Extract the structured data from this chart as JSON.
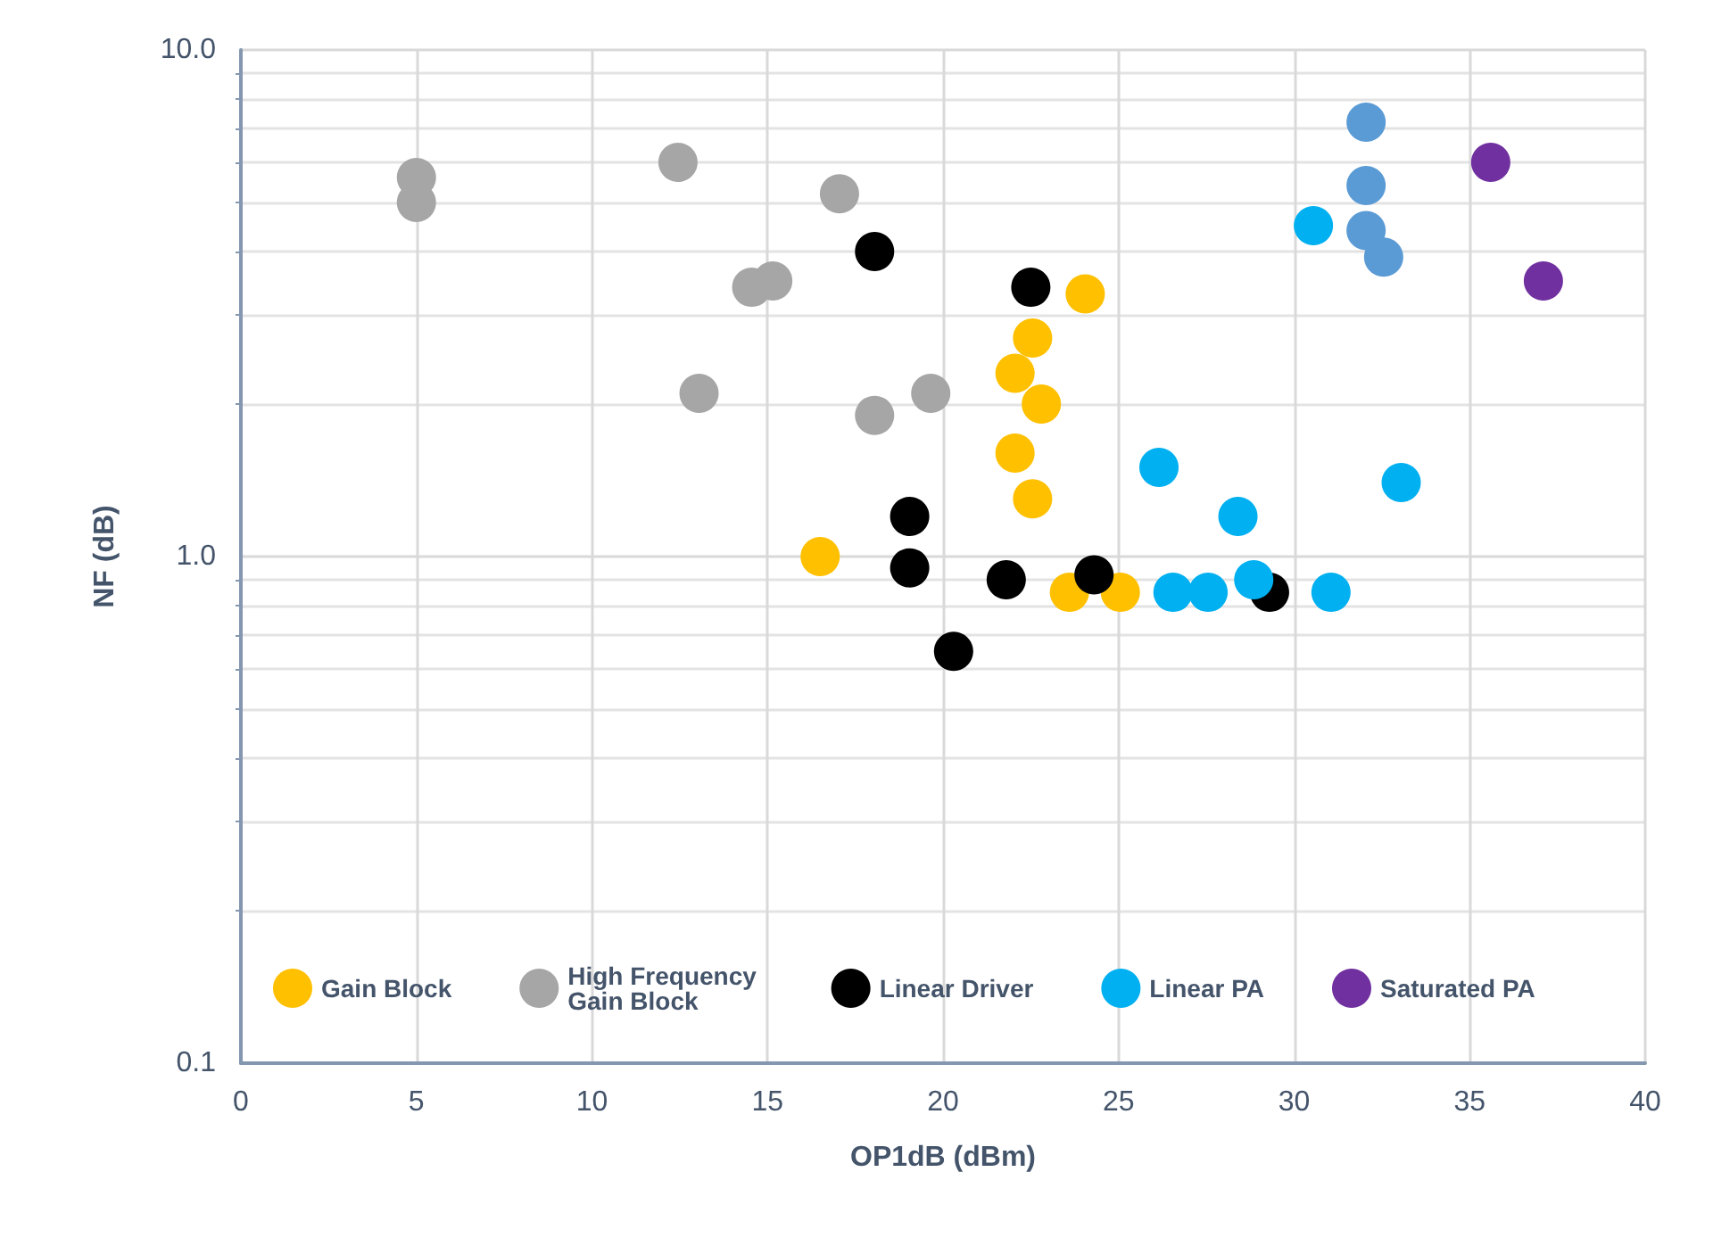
{
  "chart_data": {
    "type": "scatter",
    "xlabel": "OP1dB (dBm)",
    "ylabel": "NF (dB)",
    "log": "y",
    "grid": true,
    "legend": "bottom",
    "marker": "circle",
    "xlim": [
      0,
      40
    ],
    "xticks": [
      0,
      5,
      10,
      15,
      20,
      25,
      30,
      35,
      40
    ],
    "ylim": [
      0.1,
      10
    ],
    "yticks": [
      {
        "value": 0.1,
        "label": "0.1"
      },
      {
        "value": 1,
        "label": "1.0"
      },
      {
        "value": 10,
        "label": "10.0"
      }
    ],
    "series": [
      {
        "name": "Gain Block",
        "color": "#ffc000",
        "x": [
          16.5,
          24.05,
          22.55,
          22.05,
          22.8,
          22.05,
          22.55,
          23.6,
          25.05
        ],
        "values": [
          1.0,
          3.3,
          2.7,
          2.3,
          2.0,
          1.6,
          1.3,
          0.85,
          0.85
        ]
      },
      {
        "name": "High Frequency Gain Block",
        "color": "#a6a6a6",
        "x": [
          5,
          5,
          12.45,
          17.05,
          14.55,
          15.15,
          13.05,
          18.05,
          19.65
        ],
        "values": [
          5.6,
          5.0,
          6.0,
          5.2,
          3.4,
          3.5,
          2.1,
          1.9,
          2.1
        ]
      },
      {
        "name": "Linear Driver",
        "color": "#000000",
        "x": [
          18.05,
          22.5,
          19.05,
          19.05,
          20.3,
          21.8,
          24.3,
          29.3
        ],
        "values": [
          4.0,
          3.4,
          1.2,
          0.95,
          0.65,
          0.9,
          0.92,
          0.85
        ]
      },
      {
        "name": "Linear PA",
        "color": "#00b0f0",
        "colors": [
          "#00b0f0",
          "#00b0f0",
          "#00b0f0",
          "#00b0f0",
          "#00b0f0",
          "#00b0f0",
          "#00b0f0",
          "#00b0f0",
          "#5b9bd5",
          "#5b9bd5",
          "#5b9bd5",
          "#5b9bd5"
        ],
        "x": [
          30.55,
          26.15,
          28.4,
          33.05,
          26.55,
          27.55,
          28.85,
          31.05,
          32.05,
          32.05,
          32.05,
          32.55
        ],
        "values": [
          4.5,
          1.5,
          1.2,
          1.4,
          0.85,
          0.85,
          0.9,
          0.85,
          7.2,
          5.4,
          4.4,
          3.9
        ]
      },
      {
        "name": "Saturated PA",
        "color": "#7030a0",
        "x": [
          35.6,
          37.1
        ],
        "values": [
          6.0,
          3.5
        ]
      }
    ]
  }
}
